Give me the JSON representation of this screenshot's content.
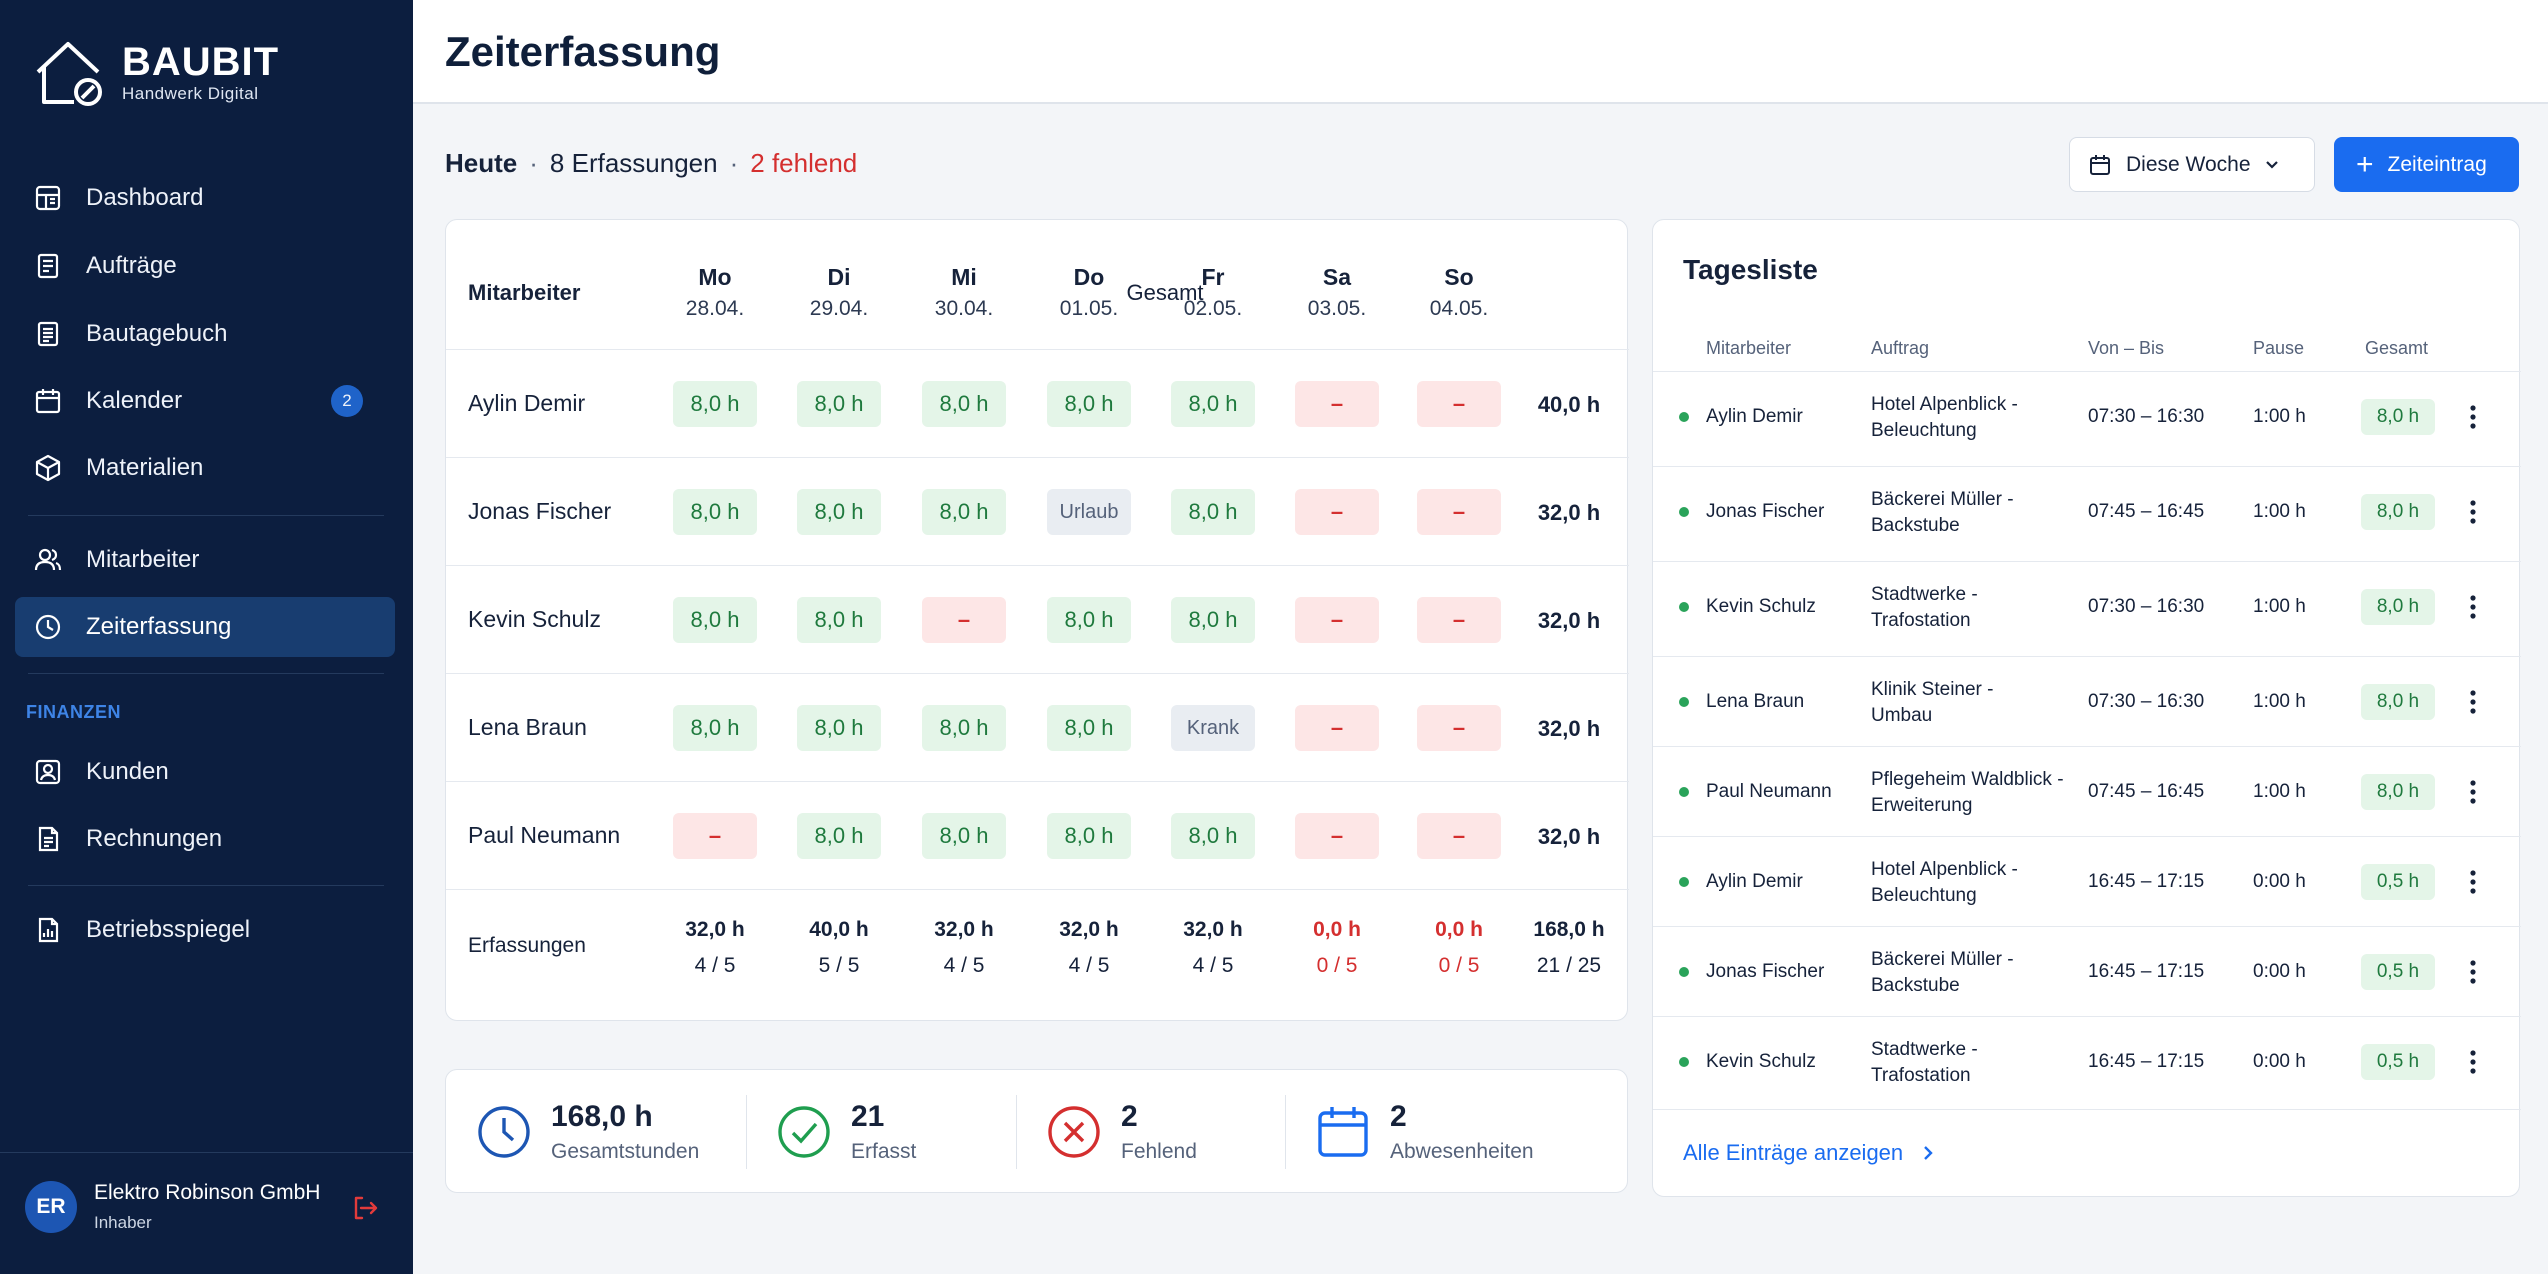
{
  "brand": {
    "name": "BAUBIT",
    "tagline": "Handwerk Digital"
  },
  "sidebar": {
    "items": [
      {
        "label": "Dashboard",
        "icon": "dashboard-icon"
      },
      {
        "label": "Aufträge",
        "icon": "document-icon"
      },
      {
        "label": "Bautagebuch",
        "icon": "notebook-icon"
      },
      {
        "label": "Kalender",
        "icon": "calendar-icon",
        "badge": "2"
      },
      {
        "label": "Materialien",
        "icon": "box-icon"
      },
      {
        "label": "Mitarbeiter",
        "icon": "users-icon"
      },
      {
        "label": "Zeiterfassung",
        "icon": "clock-icon",
        "active": true
      },
      {
        "label": "Kunden",
        "icon": "customer-icon"
      },
      {
        "label": "Rechnungen",
        "icon": "invoice-icon"
      },
      {
        "label": "Betriebsspiegel",
        "icon": "report-icon"
      }
    ],
    "section_finance": "FINANZEN",
    "user": {
      "initials": "ER",
      "company": "Elektro Robinson GmbH",
      "role": "Inhaber"
    }
  },
  "header": {
    "title": "Zeiterfassung"
  },
  "summary": {
    "today": "Heute",
    "entries": "8 Erfassungen",
    "missing": "2 fehlend"
  },
  "toolbar": {
    "week_label": "Diese Woche",
    "add_label": "Zeiteintrag"
  },
  "week": {
    "employee_header": "Mitarbeiter",
    "total_header": "Gesamt",
    "days": [
      {
        "d": "Mo",
        "date": "28.04."
      },
      {
        "d": "Di",
        "date": "29.04."
      },
      {
        "d": "Mi",
        "date": "30.04."
      },
      {
        "d": "Do",
        "date": "01.05."
      },
      {
        "d": "Fr",
        "date": "02.05."
      },
      {
        "d": "Sa",
        "date": "03.05."
      },
      {
        "d": "So",
        "date": "04.05."
      }
    ],
    "rows": [
      {
        "name": "Aylin Demir",
        "cells": [
          "8,0 h",
          "8,0 h",
          "8,0 h",
          "8,0 h",
          "8,0 h",
          "–",
          "–"
        ],
        "total": "40,0 h"
      },
      {
        "name": "Jonas Fischer",
        "cells": [
          "8,0 h",
          "8,0 h",
          "8,0 h",
          "Urlaub",
          "8,0 h",
          "–",
          "–"
        ],
        "total": "32,0 h"
      },
      {
        "name": "Kevin Schulz",
        "cells": [
          "8,0 h",
          "8,0 h",
          "–",
          "8,0 h",
          "8,0 h",
          "–",
          "–"
        ],
        "total": "32,0 h"
      },
      {
        "name": "Lena Braun",
        "cells": [
          "8,0 h",
          "8,0 h",
          "8,0 h",
          "8,0 h",
          "Krank",
          "–",
          "–"
        ],
        "total": "32,0 h"
      },
      {
        "name": "Paul Neumann",
        "cells": [
          "–",
          "8,0 h",
          "8,0 h",
          "8,0 h",
          "8,0 h",
          "–",
          "–"
        ],
        "total": "32,0 h"
      }
    ],
    "footer_label": "Erfassungen",
    "footer": [
      {
        "h": "32,0 h",
        "c": "4 / 5"
      },
      {
        "h": "40,0 h",
        "c": "5 / 5"
      },
      {
        "h": "32,0 h",
        "c": "4 / 5"
      },
      {
        "h": "32,0 h",
        "c": "4 / 5"
      },
      {
        "h": "32,0 h",
        "c": "4 / 5"
      },
      {
        "h": "0,0 h",
        "c": "0 / 5",
        "red": true
      },
      {
        "h": "0,0 h",
        "c": "0 / 5",
        "red": true
      },
      {
        "h": "168,0 h",
        "c": "21 / 25"
      }
    ]
  },
  "stats": [
    {
      "value": "168,0 h",
      "label": "Gesamtstunden",
      "icon": "clock-icon",
      "color": "#1d56b3"
    },
    {
      "value": "21",
      "label": "Erfasst",
      "icon": "check-circle-icon",
      "color": "#1f9e4f"
    },
    {
      "value": "2",
      "label": "Fehlend",
      "icon": "x-circle-icon",
      "color": "#d42f2f"
    },
    {
      "value": "2",
      "label": "Abwesenheiten",
      "icon": "calendar-icon",
      "color": "#1a6cf0"
    }
  ],
  "daily": {
    "title": "Tagesliste",
    "headers": {
      "employee": "Mitarbeiter",
      "job": "Auftrag",
      "time": "Von – Bis",
      "pause": "Pause",
      "total": "Gesamt"
    },
    "rows": [
      {
        "name": "Aylin Demir",
        "job1": "Hotel Alpenblick -",
        "job2": "Beleuchtung",
        "time": "07:30 – 16:30",
        "pause": "1:00 h",
        "total": "8,0 h"
      },
      {
        "name": "Jonas Fischer",
        "job1": "Bäckerei Müller -",
        "job2": "Backstube",
        "time": "07:45 – 16:45",
        "pause": "1:00 h",
        "total": "8,0 h"
      },
      {
        "name": "Kevin Schulz",
        "job1": "Stadtwerke -",
        "job2": "Trafostation",
        "time": "07:30 – 16:30",
        "pause": "1:00 h",
        "total": "8,0 h"
      },
      {
        "name": "Lena Braun",
        "job1": "Klinik Steiner -",
        "job2": "Umbau",
        "time": "07:30 – 16:30",
        "pause": "1:00 h",
        "total": "8,0 h"
      },
      {
        "name": "Paul Neumann",
        "job1": "Pflegeheim Waldblick -",
        "job2": "Erweiterung",
        "time": "07:45 – 16:45",
        "pause": "1:00 h",
        "total": "8,0 h"
      },
      {
        "name": "Aylin Demir",
        "job1": "Hotel Alpenblick -",
        "job2": "Beleuchtung",
        "time": "16:45 – 17:15",
        "pause": "0:00 h",
        "total": "0,5 h"
      },
      {
        "name": "Jonas Fischer",
        "job1": "Bäckerei Müller -",
        "job2": "Backstube",
        "time": "16:45 – 17:15",
        "pause": "0:00 h",
        "total": "0,5 h"
      },
      {
        "name": "Kevin Schulz",
        "job1": "Stadtwerke -",
        "job2": "Trafostation",
        "time": "16:45 – 17:15",
        "pause": "0:00 h",
        "total": "0,5 h"
      }
    ],
    "show_all": "Alle Einträge anzeigen"
  }
}
